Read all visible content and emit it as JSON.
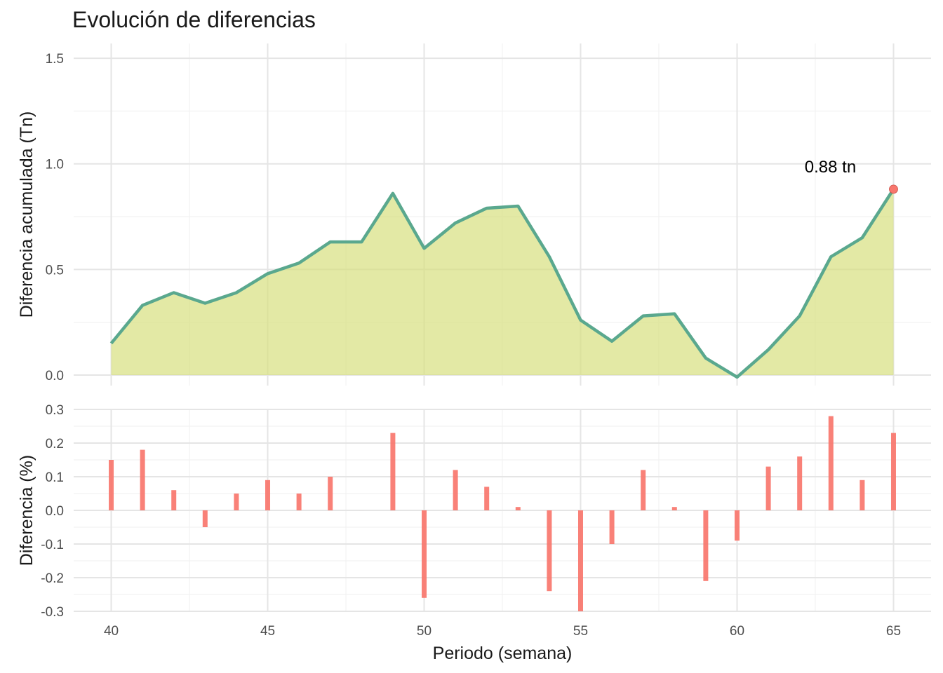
{
  "title": "Evolución de diferencias",
  "colors": {
    "line": "#5aa88e",
    "area": "#d6df7a",
    "bar": "#f8766d",
    "point": "#f8766d",
    "grid_major": "#e5e5e5",
    "grid_minor": "#f2f2f2"
  },
  "chart_data": [
    {
      "type": "area",
      "title": "",
      "xlabel": "",
      "ylabel": "Diferencia acumulada (Tn)",
      "xlim": [
        38.8,
        66.2
      ],
      "ylim": [
        -0.05,
        1.57
      ],
      "x_ticks": [
        "40",
        "45",
        "50",
        "55",
        "60",
        "65"
      ],
      "y_ticks": [
        "0.0",
        "0.5",
        "1.0",
        "1.5"
      ],
      "grid": true,
      "x": [
        40,
        41,
        42,
        43,
        44,
        45,
        46,
        47,
        48,
        49,
        50,
        51,
        52,
        53,
        54,
        55,
        56,
        57,
        58,
        59,
        60,
        61,
        62,
        63,
        64,
        65
      ],
      "values": [
        0.15,
        0.33,
        0.39,
        0.34,
        0.39,
        0.48,
        0.53,
        0.63,
        0.63,
        0.86,
        0.6,
        0.72,
        0.79,
        0.8,
        0.56,
        0.26,
        0.16,
        0.28,
        0.29,
        0.08,
        -0.01,
        0.12,
        0.28,
        0.56,
        0.65,
        0.88
      ],
      "annotation": {
        "x": 65,
        "y": 0.88,
        "label": "0.88 tn"
      }
    },
    {
      "type": "bar",
      "title": "",
      "xlabel": "Periodo (semana)",
      "ylabel": "Diferencia (%)",
      "xlim": [
        38.8,
        66.2
      ],
      "ylim": [
        -0.3,
        0.3
      ],
      "x_ticks": [
        "40",
        "45",
        "50",
        "55",
        "60",
        "65"
      ],
      "y_ticks": [
        "-0.3",
        "-0.2",
        "-0.1",
        "0.0",
        "0.1",
        "0.2",
        "0.3"
      ],
      "grid": true,
      "x": [
        40,
        41,
        42,
        43,
        44,
        45,
        46,
        47,
        48,
        49,
        50,
        51,
        52,
        53,
        54,
        55,
        56,
        57,
        58,
        59,
        60,
        61,
        62,
        63,
        64,
        65
      ],
      "values": [
        0.15,
        0.18,
        0.06,
        -0.05,
        0.05,
        0.09,
        0.05,
        0.1,
        0.0,
        0.23,
        -0.26,
        0.12,
        0.07,
        0.01,
        -0.24,
        -0.3,
        -0.1,
        0.12,
        0.01,
        -0.21,
        -0.09,
        0.13,
        0.16,
        0.28,
        0.09,
        0.23
      ]
    }
  ]
}
